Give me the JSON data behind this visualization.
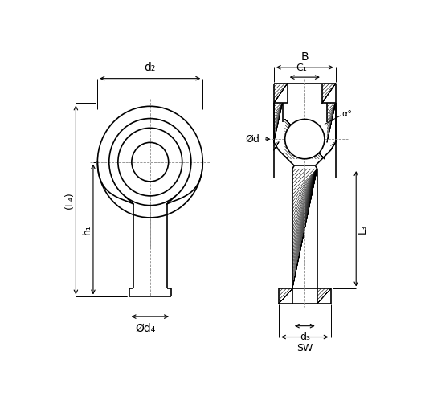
{
  "bg_color": "#ffffff",
  "line_color": "#000000",
  "center_color": "#888888",
  "dim_color": "#000000",
  "fig_width": 5.29,
  "fig_height": 4.93,
  "dpi": 100,
  "labels": {
    "d2": "d₂",
    "d4": "Ød₄",
    "L4": "(L₄)",
    "h1": "h₁",
    "B": "B",
    "C1": "C₁",
    "phi_d": "Ød",
    "alpha": "α°",
    "L3": "L₃",
    "d3": "d₃",
    "SW": "SW"
  }
}
